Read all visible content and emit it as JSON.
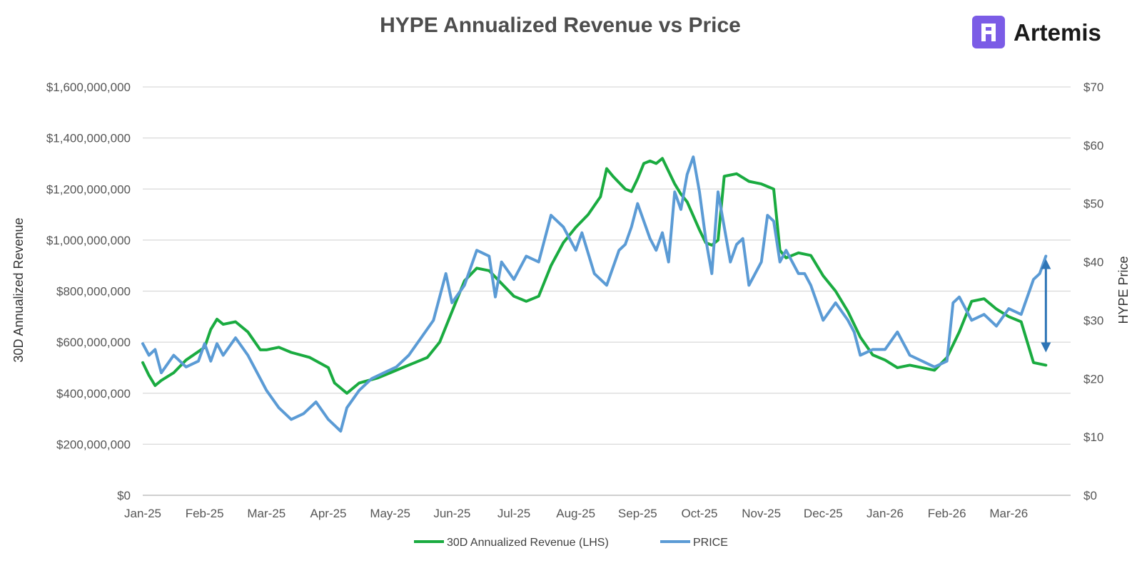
{
  "brand": {
    "name": "Artemis",
    "icon": "artemis-logo-icon",
    "color": "#7b5ce6"
  },
  "chart_data": {
    "type": "line",
    "title": "HYPE Annualized Revenue vs Price",
    "xlabel": "",
    "ylabel_left": "30D Annualized Revenue",
    "ylabel_right": "HYPE Price",
    "x_ticks": [
      "Jan-25",
      "Feb-25",
      "Mar-25",
      "Apr-25",
      "May-25",
      "Jun-25",
      "Jul-25",
      "Aug-25",
      "Sep-25",
      "Oct-25",
      "Nov-25",
      "Dec-25",
      "Jan-26",
      "Feb-26",
      "Mar-26"
    ],
    "y_left": {
      "range": [
        0,
        1600000000
      ],
      "ticks": [
        "$0",
        "$200,000,000",
        "$400,000,000",
        "$600,000,000",
        "$800,000,000",
        "$1,000,000,000",
        "$1,200,000,000",
        "$1,400,000,000",
        "$1,600,000,000"
      ]
    },
    "y_right": {
      "range": [
        0,
        70
      ],
      "ticks": [
        "$0",
        "$10",
        "$20",
        "$30",
        "$40",
        "$50",
        "$60",
        "$70"
      ]
    },
    "grid": true,
    "legend_position": "bottom",
    "annotation": {
      "type": "double-arrow",
      "x_month": 14.6,
      "from_price": 24.5,
      "to_price": 40.5,
      "color": "#2e75b6"
    },
    "series": [
      {
        "name": "30D Annualized Revenue (LHS)",
        "axis": "left",
        "color": "#1aab40",
        "x": [
          0,
          0.1,
          0.2,
          0.3,
          0.5,
          0.7,
          1.0,
          1.1,
          1.2,
          1.3,
          1.5,
          1.7,
          1.9,
          2.0,
          2.2,
          2.4,
          2.7,
          3.0,
          3.1,
          3.3,
          3.5,
          3.8,
          4.0,
          4.2,
          4.4,
          4.6,
          4.8,
          5.0,
          5.2,
          5.4,
          5.6,
          5.8,
          6.0,
          6.2,
          6.4,
          6.6,
          6.8,
          7.0,
          7.2,
          7.4,
          7.5,
          7.6,
          7.8,
          7.9,
          8.0,
          8.1,
          8.2,
          8.3,
          8.4,
          8.5,
          8.6,
          8.7,
          8.8,
          9.0,
          9.1,
          9.2,
          9.3,
          9.4,
          9.6,
          9.8,
          10.0,
          10.2,
          10.3,
          10.4,
          10.6,
          10.8,
          11.0,
          11.2,
          11.4,
          11.6,
          11.8,
          12.0,
          12.2,
          12.4,
          12.6,
          12.8,
          13.0,
          13.2,
          13.4,
          13.6,
          13.8,
          14.0,
          14.2,
          14.4,
          14.6
        ],
        "values": [
          520000000,
          470000000,
          430000000,
          450000000,
          480000000,
          530000000,
          580000000,
          650000000,
          690000000,
          670000000,
          680000000,
          640000000,
          570000000,
          570000000,
          580000000,
          560000000,
          540000000,
          500000000,
          440000000,
          400000000,
          440000000,
          460000000,
          480000000,
          500000000,
          520000000,
          540000000,
          600000000,
          720000000,
          840000000,
          890000000,
          880000000,
          830000000,
          780000000,
          760000000,
          780000000,
          900000000,
          990000000,
          1050000000,
          1100000000,
          1170000000,
          1280000000,
          1250000000,
          1200000000,
          1190000000,
          1240000000,
          1300000000,
          1310000000,
          1300000000,
          1320000000,
          1270000000,
          1220000000,
          1180000000,
          1150000000,
          1040000000,
          990000000,
          980000000,
          1000000000,
          1250000000,
          1260000000,
          1230000000,
          1220000000,
          1200000000,
          960000000,
          930000000,
          950000000,
          940000000,
          860000000,
          800000000,
          720000000,
          620000000,
          550000000,
          530000000,
          500000000,
          510000000,
          500000000,
          490000000,
          540000000,
          640000000,
          760000000,
          770000000,
          730000000,
          700000000,
          680000000,
          520000000,
          510000000
        ]
      },
      {
        "name": "PRICE",
        "axis": "right",
        "color": "#5b9bd5",
        "x": [
          0,
          0.1,
          0.2,
          0.3,
          0.5,
          0.7,
          0.9,
          1.0,
          1.1,
          1.2,
          1.3,
          1.5,
          1.7,
          1.9,
          2.0,
          2.2,
          2.4,
          2.6,
          2.8,
          3.0,
          3.1,
          3.2,
          3.3,
          3.5,
          3.7,
          3.9,
          4.1,
          4.3,
          4.5,
          4.7,
          4.9,
          5.0,
          5.2,
          5.4,
          5.6,
          5.7,
          5.8,
          6.0,
          6.2,
          6.4,
          6.6,
          6.7,
          6.8,
          7.0,
          7.1,
          7.3,
          7.5,
          7.7,
          7.8,
          7.9,
          8.0,
          8.2,
          8.3,
          8.4,
          8.5,
          8.6,
          8.7,
          8.8,
          8.9,
          9.0,
          9.1,
          9.2,
          9.3,
          9.4,
          9.5,
          9.6,
          9.7,
          9.8,
          10.0,
          10.1,
          10.2,
          10.3,
          10.4,
          10.6,
          10.7,
          10.8,
          11.0,
          11.2,
          11.4,
          11.5,
          11.6,
          11.8,
          12.0,
          12.2,
          12.4,
          12.6,
          12.8,
          13.0,
          13.1,
          13.2,
          13.4,
          13.6,
          13.8,
          14.0,
          14.2,
          14.4,
          14.5,
          14.6
        ],
        "values": [
          26,
          24,
          25,
          21,
          24,
          22,
          23,
          26,
          23,
          26,
          24,
          27,
          24,
          20,
          18,
          15,
          13,
          14,
          16,
          13,
          12,
          11,
          15,
          18,
          20,
          21,
          22,
          24,
          27,
          30,
          38,
          33,
          36,
          42,
          41,
          34,
          40,
          37,
          41,
          40,
          48,
          47,
          46,
          42,
          45,
          38,
          36,
          42,
          43,
          46,
          50,
          44,
          42,
          45,
          40,
          52,
          49,
          55,
          58,
          52,
          44,
          38,
          52,
          46,
          40,
          43,
          44,
          36,
          40,
          48,
          47,
          40,
          42,
          38,
          38,
          36,
          30,
          33,
          30,
          28,
          24,
          25,
          25,
          28,
          24,
          23,
          22,
          23,
          33,
          34,
          30,
          31,
          29,
          32,
          31,
          37,
          38,
          41
        ]
      }
    ]
  }
}
